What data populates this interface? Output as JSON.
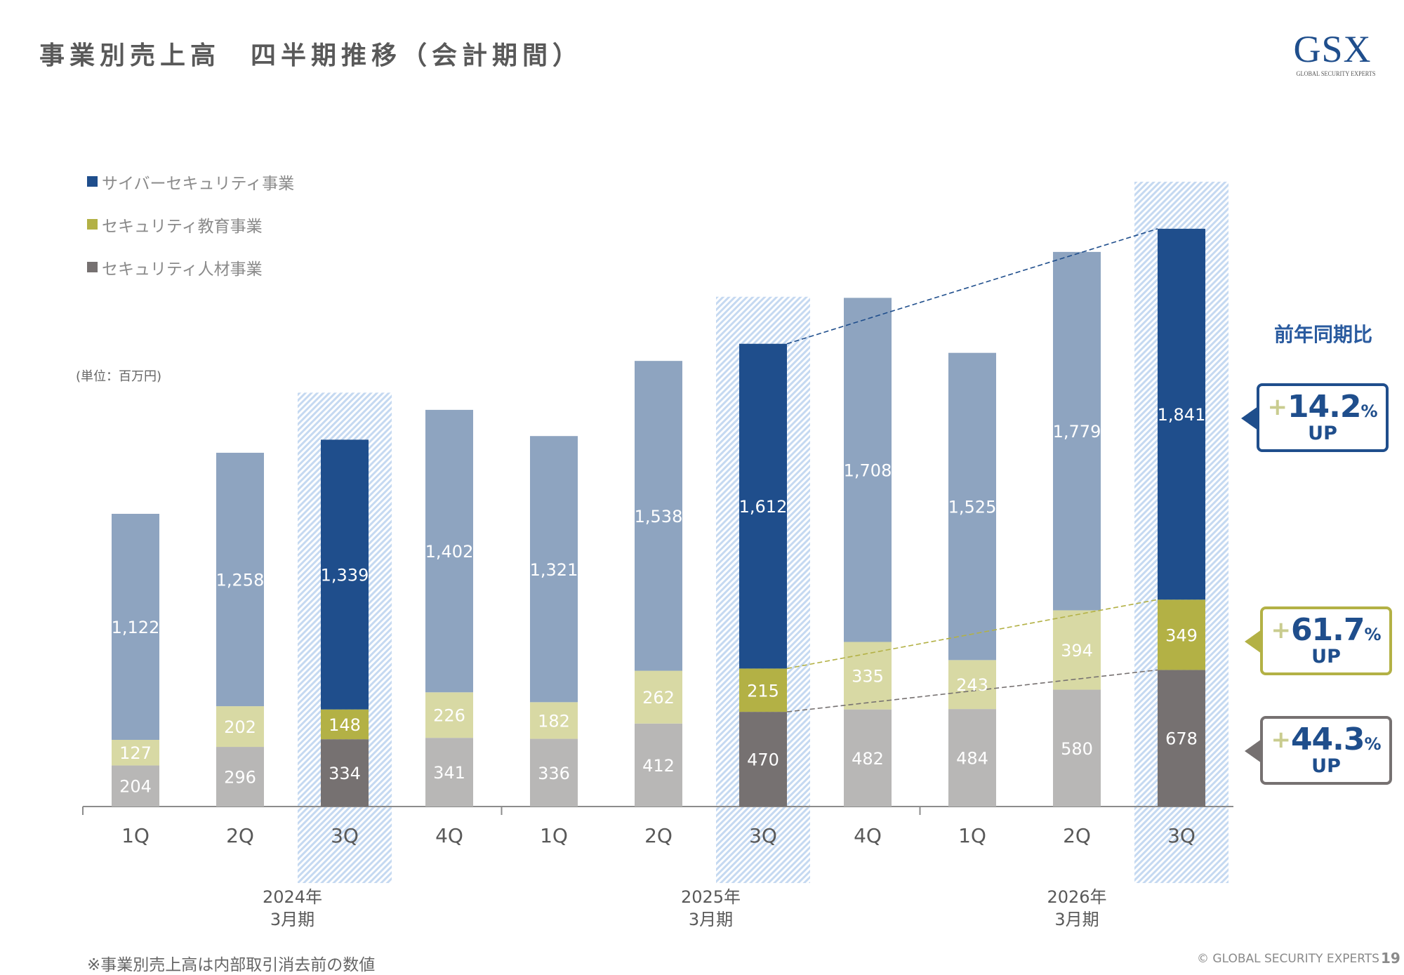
{
  "header": {
    "title": "事業別売上高　四半期推移（会計期間）",
    "logo_mark": "GSX",
    "logo_sub": "GLOBAL SECURITY EXPERTS"
  },
  "legend": [
    {
      "label": "サイバーセキュリティ事業",
      "color": "#1f4e8c"
    },
    {
      "label": "セキュリティ教育事業",
      "color": "#b3b145"
    },
    {
      "label": "セキュリティ人材事業",
      "color": "#767171"
    }
  ],
  "unit_label": "(単位：百万円)",
  "yoy": {
    "title": "前年同期比",
    "callouts": [
      {
        "series": "サイバーセキュリティ事業",
        "sign": "+",
        "value": "14.2",
        "unit": "%",
        "suffix": "UP",
        "border_color": "#1f4e8c"
      },
      {
        "series": "セキュリティ教育事業",
        "sign": "+",
        "value": "61.7",
        "unit": "%",
        "suffix": "UP",
        "border_color": "#b3b145"
      },
      {
        "series": "セキュリティ人材事業",
        "sign": "+",
        "value": "44.3",
        "unit": "%",
        "suffix": "UP",
        "border_color": "#767171"
      }
    ]
  },
  "chart_data": {
    "type": "bar",
    "stacked": true,
    "title": "事業別売上高　四半期推移（会計期間）",
    "ylabel": "(単位：百万円)",
    "xlabel": "",
    "categories": [
      "1Q",
      "2Q",
      "3Q",
      "4Q",
      "1Q",
      "2Q",
      "3Q",
      "4Q",
      "1Q",
      "2Q",
      "3Q"
    ],
    "fiscal_years": [
      {
        "label_line1": "2024年",
        "label_line2": "3月期",
        "span": [
          0,
          3
        ]
      },
      {
        "label_line1": "2025年",
        "label_line2": "3月期",
        "span": [
          4,
          7
        ]
      },
      {
        "label_line1": "2026年",
        "label_line2": "3月期",
        "span": [
          8,
          10
        ]
      }
    ],
    "highlighted_indices": [
      2,
      6,
      10
    ],
    "series": [
      {
        "name": "セキュリティ人材事業",
        "color": "#767171",
        "muted_color": "#b8b7b6",
        "values": [
          204,
          296,
          334,
          341,
          336,
          412,
          470,
          482,
          484,
          580,
          678
        ]
      },
      {
        "name": "セキュリティ教育事業",
        "color": "#b3b145",
        "muted_color": "#d8d9a4",
        "values": [
          127,
          202,
          148,
          226,
          182,
          262,
          215,
          335,
          243,
          394,
          349
        ]
      },
      {
        "name": "サイバーセキュリティ事業",
        "color": "#1f4e8c",
        "muted_color": "#8ea4c0",
        "values": [
          1122,
          1258,
          1339,
          1402,
          1321,
          1538,
          1612,
          1708,
          1525,
          1779,
          1841
        ]
      }
    ],
    "value_labels": [
      [
        "204",
        "296",
        "334",
        "341",
        "336",
        "412",
        "470",
        "482",
        "484",
        "580",
        "678"
      ],
      [
        "127",
        "202",
        "148",
        "226",
        "182",
        "262",
        "215",
        "335",
        "243",
        "394",
        "349"
      ],
      [
        "1,122",
        "1,258",
        "1,339",
        "1,402",
        "1,321",
        "1,538",
        "1,612",
        "1,708",
        "1,525",
        "1,779",
        "1,841"
      ]
    ],
    "comparison_lines": {
      "from_index": 6,
      "to_index": 10
    },
    "ylim": [
      0,
      3000
    ],
    "grid": false,
    "legend_position": "top-left"
  },
  "footer": {
    "note": "※事業別売上高は内部取引消去前の数値",
    "copyright": "© GLOBAL SECURITY EXPERTS",
    "page": "19"
  }
}
